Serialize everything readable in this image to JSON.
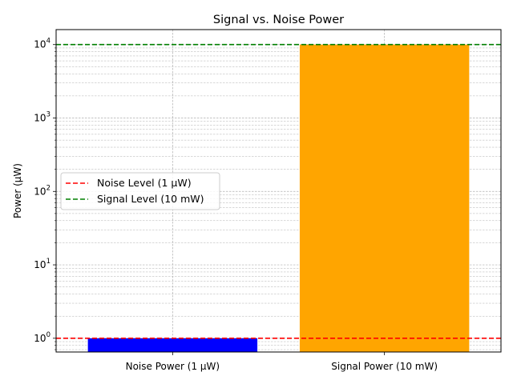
{
  "chart_data": {
    "type": "bar",
    "title": "Signal vs. Noise Power",
    "xlabel": "",
    "ylabel": "Power (μW)",
    "yscale": "log",
    "ylim": [
      0.65,
      16000
    ],
    "yticks": [
      {
        "value": 1,
        "base": "10",
        "exp": "0"
      },
      {
        "value": 10,
        "base": "10",
        "exp": "1"
      },
      {
        "value": 100,
        "base": "10",
        "exp": "2"
      },
      {
        "value": 1000,
        "base": "10",
        "exp": "3"
      },
      {
        "value": 10000,
        "base": "10",
        "exp": "4"
      }
    ],
    "categories": [
      "Noise Power (1 μW)",
      "Signal Power (10 mW)"
    ],
    "values": [
      1,
      10000
    ],
    "bar_colors": [
      "#0000ff",
      "#ffa500"
    ],
    "hlines": [
      {
        "label": "Noise Level (1 μW)",
        "value": 1,
        "color": "#ff0000",
        "style": "dashed"
      },
      {
        "label": "Signal Level (10 mW)",
        "value": 10000,
        "color": "#008000",
        "style": "dashed"
      }
    ],
    "grid": true,
    "legend_placement": "center-left"
  }
}
